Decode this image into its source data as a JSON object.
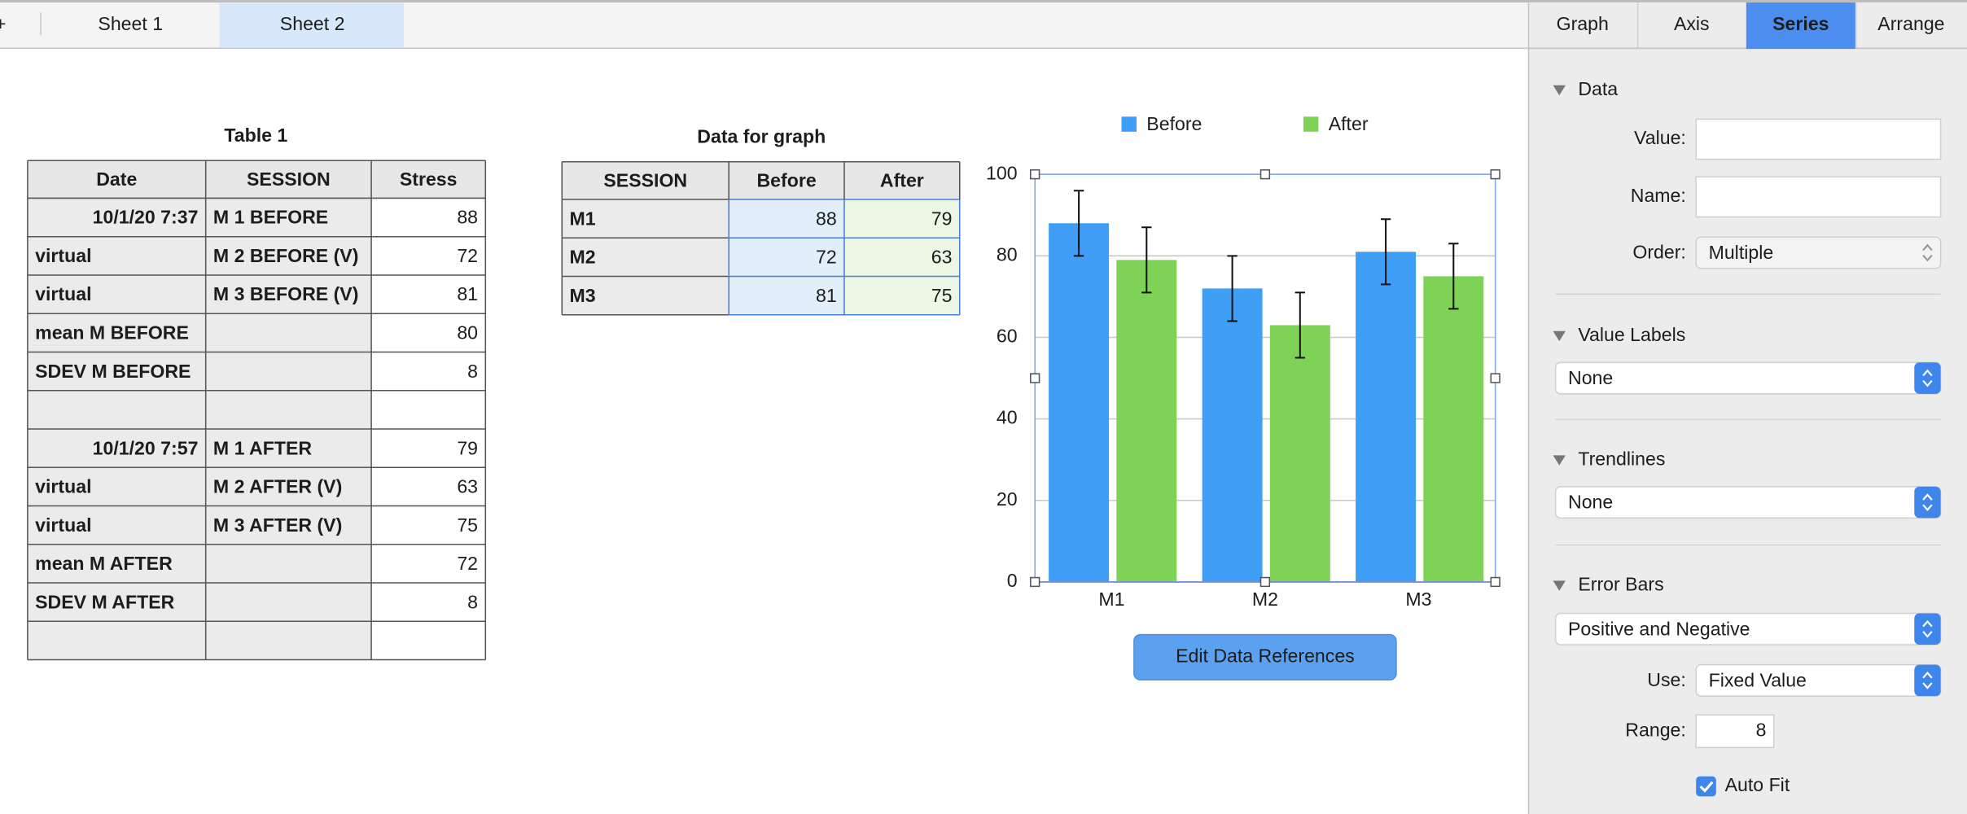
{
  "sheet_tabs": [
    "Sheet 1",
    "Sheet 2"
  ],
  "table1": {
    "title": "Table 1",
    "header": [
      "Date",
      "SESSION",
      "Stress"
    ],
    "rows": [
      [
        "10/1/20 7:37",
        "M 1 BEFORE",
        88
      ],
      [
        "virtual",
        "M 2 BEFORE (V)",
        72
      ],
      [
        "virtual",
        "M 3 BEFORE (V)",
        81
      ],
      [
        "mean M BEFORE",
        null,
        80
      ],
      [
        "SDEV M BEFORE",
        null,
        8
      ],
      [
        null,
        null,
        null
      ],
      [
        "10/1/20 7:57",
        "M 1 AFTER",
        79
      ],
      [
        "virtual",
        "M 2 AFTER (V)",
        63
      ],
      [
        "virtual",
        "M 3 AFTER (V)",
        75
      ],
      [
        "mean M AFTER",
        null,
        72
      ],
      [
        "SDEV M AFTER",
        null,
        8
      ],
      [
        null,
        null,
        null
      ]
    ]
  },
  "graph_table": {
    "title": "Data for graph",
    "header": [
      "SESSION",
      "Before",
      "After"
    ],
    "rows": [
      [
        "M1",
        88,
        79
      ],
      [
        "M2",
        72,
        63
      ],
      [
        "M3",
        81,
        75
      ]
    ]
  },
  "chart_data": {
    "type": "bar",
    "categories": [
      "M1",
      "M2",
      "M3"
    ],
    "series": [
      {
        "name": "Before",
        "color": "#3f9ef6",
        "values": [
          88,
          72,
          81
        ],
        "errors": [
          8,
          8,
          8
        ]
      },
      {
        "name": "After",
        "color": "#7ed357",
        "values": [
          79,
          63,
          75
        ],
        "errors": [
          8,
          8,
          8
        ]
      }
    ],
    "ylim": [
      0,
      100
    ],
    "yticks": [
      0,
      20,
      40,
      60,
      80,
      100
    ],
    "grid": true,
    "legend": "top"
  },
  "button": "Edit Data References",
  "inspector": {
    "tabs": [
      "Graph",
      "Axis",
      "Series",
      "Arrange"
    ],
    "selected_tab": 2,
    "data": {
      "title": "Data",
      "value_label": "Value:",
      "name_label": "Name:",
      "order_label": "Order:",
      "order_value": "Multiple"
    },
    "value_labels": {
      "title": "Value Labels",
      "value": "None"
    },
    "trendlines": {
      "title": "Trendlines",
      "value": "None"
    },
    "error_bars": {
      "title": "Error Bars",
      "value": "Positive and Negative",
      "use_label": "Use:",
      "use_value": "Fixed Value",
      "range_label": "Range:",
      "range_value": 8,
      "auto_fit": "Auto Fit"
    }
  }
}
